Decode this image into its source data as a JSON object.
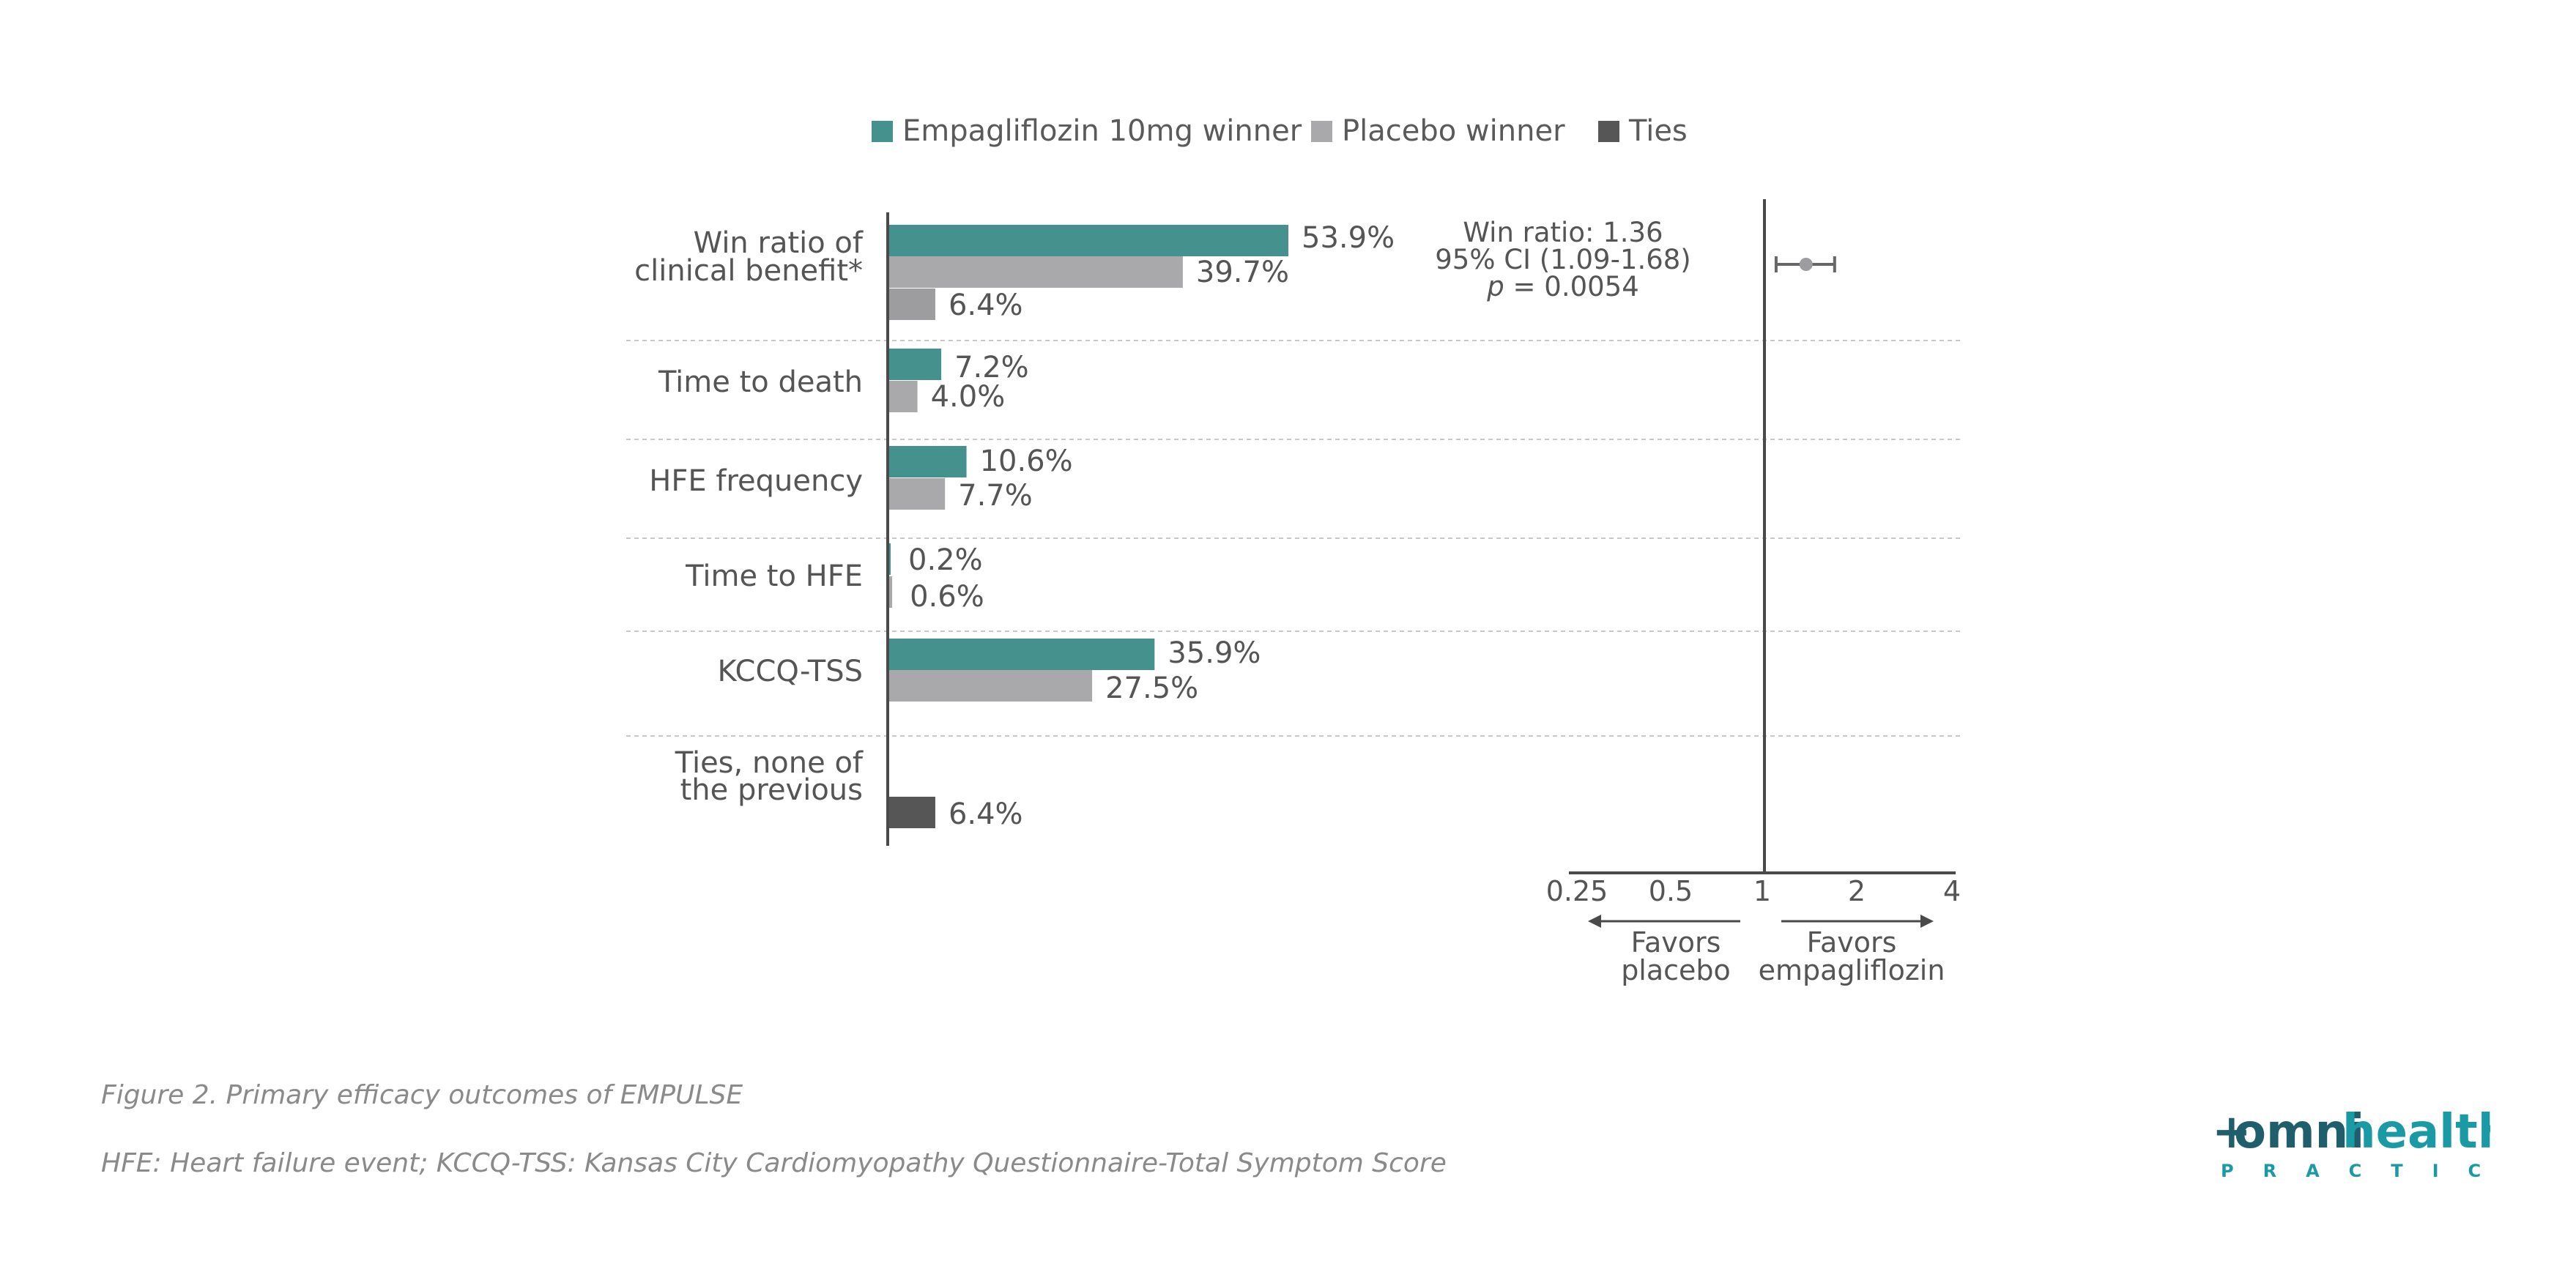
{
  "colors": {
    "empagliflozin": "#45918d",
    "placebo": "#a9a9ab",
    "placebo_dark": "#9d9d9f",
    "ties": "#565656",
    "axis": "#4a4a4a",
    "divider": "#c8c8c8",
    "brand_dark": "#1f5f6b",
    "brand_accent": "#1a9aa5"
  },
  "chart_data": [
    {
      "type": "bar",
      "orientation": "horizontal",
      "legend": [
        {
          "key": "empagliflozin",
          "label": "Empagliflozin 10mg winner",
          "color": "#45918d"
        },
        {
          "key": "placebo",
          "label": "Placebo winner",
          "color": "#a9a9ab"
        },
        {
          "key": "ties",
          "label": "Ties",
          "color": "#565656"
        }
      ],
      "categories": [
        {
          "label_lines": [
            "Win ratio of",
            "clinical benefit*"
          ],
          "bars": [
            {
              "series": "empagliflozin",
              "value": 53.9,
              "label": "53.9%"
            },
            {
              "series": "placebo",
              "value": 39.7,
              "label": "39.7%"
            },
            {
              "series": "ties",
              "value": 6.4,
              "label": "6.4%",
              "shade": "placebo_dark"
            }
          ]
        },
        {
          "label_lines": [
            "Time to death"
          ],
          "bars": [
            {
              "series": "empagliflozin",
              "value": 7.2,
              "label": "7.2%"
            },
            {
              "series": "placebo",
              "value": 4.0,
              "label": "4.0%"
            }
          ]
        },
        {
          "label_lines": [
            "HFE frequency"
          ],
          "bars": [
            {
              "series": "empagliflozin",
              "value": 10.6,
              "label": "10.6%"
            },
            {
              "series": "placebo",
              "value": 7.7,
              "label": "7.7%"
            }
          ]
        },
        {
          "label_lines": [
            "Time to HFE"
          ],
          "bars": [
            {
              "series": "empagliflozin",
              "value": 0.2,
              "label": "0.2%"
            },
            {
              "series": "placebo",
              "value": 0.6,
              "label": "0.6%"
            }
          ]
        },
        {
          "label_lines": [
            "KCCQ-TSS"
          ],
          "bars": [
            {
              "series": "empagliflozin",
              "value": 35.9,
              "label": "35.9%"
            },
            {
              "series": "placebo",
              "value": 27.5,
              "label": "27.5%"
            }
          ]
        },
        {
          "label_lines": [
            "Ties, none of",
            "the previous"
          ],
          "bars": [
            {
              "series": "ties",
              "value": 6.4,
              "label": "6.4%"
            }
          ]
        }
      ],
      "xlim": [
        0,
        60
      ]
    },
    {
      "type": "forest",
      "scale": "log",
      "ticks": [
        0.25,
        0.5,
        1,
        2,
        4
      ],
      "tick_labels": [
        "0.25",
        "0.5",
        "1",
        "2",
        "4"
      ],
      "reference": 1,
      "estimate": 1.36,
      "ci": [
        1.09,
        1.68
      ],
      "annotation": {
        "line1": "Win ratio: 1.36",
        "line2": "95% CI (1.09-1.68)",
        "p_symbol": "p",
        "p_rest": " = 0.0054"
      },
      "favors_left": [
        "Favors",
        "placebo"
      ],
      "favors_right": [
        "Favors",
        "empagliflozin"
      ]
    }
  ],
  "captions": {
    "figure": "Figure 2. Primary efficacy outcomes of EMPULSE",
    "abbreviations": "HFE: Heart failure event; KCCQ-TSS: Kansas City Cardiomyopathy Questionnaire-Total Symptom Score"
  },
  "brand": {
    "mark": "+",
    "omni": "omni",
    "health": "health",
    "sub": "PRACTICE"
  }
}
